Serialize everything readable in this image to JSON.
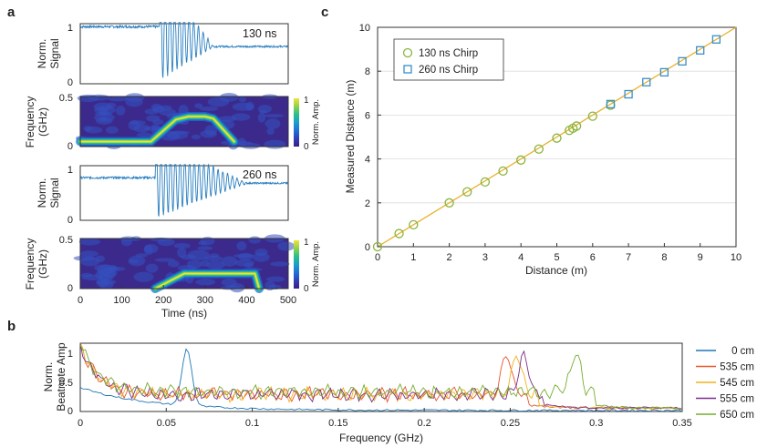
{
  "panels": {
    "a": "a",
    "b": "b",
    "c": "c"
  },
  "colors": {
    "signal": "#2a7fc1",
    "fit_line": "#e8b02a",
    "marker_130": "#8ab43c",
    "marker_260": "#3a8fc8",
    "grid": "#dcdcdc"
  },
  "panel_a": {
    "signal_130_label": "130 ns",
    "signal_260_label": "260 ns",
    "signal_ylabel": [
      "Norm.",
      "Signal"
    ],
    "spec_ylabel": [
      "Frequency",
      "(GHz)"
    ],
    "signal_yticks": [
      "1",
      "0"
    ],
    "spec_yticks": [
      "0.5",
      "0"
    ],
    "colorbar_ticks": [
      "1",
      "0"
    ],
    "colorbar_label": "Norm. Amp.",
    "colormap": [
      "#3b1f84",
      "#3140b8",
      "#1f6fd8",
      "#1aa0c8",
      "#27c08a",
      "#8fd14a",
      "#f0e23a"
    ],
    "xticks": [
      "0",
      "100",
      "200",
      "300",
      "400",
      "500"
    ],
    "xlabel": "Time (ns)"
  },
  "panel_b": {
    "ylabel": [
      "Norm.",
      "Beatnote Amp"
    ],
    "xlabel": "Frequency (GHz)",
    "xticks": [
      "0",
      "0.05",
      "0.1",
      "0.15",
      "0.2",
      "0.25",
      "0.3",
      "0.35"
    ],
    "yticks": [
      "1",
      "0.5",
      "0"
    ],
    "legend": [
      {
        "label": "0 cm",
        "color": "#1f77b4"
      },
      {
        "label": "535 cm",
        "color": "#e8552a"
      },
      {
        "label": "545 cm",
        "color": "#f0b21a"
      },
      {
        "label": "555 cm",
        "color": "#7b2d8e"
      },
      {
        "label": "650 cm",
        "color": "#77ac30"
      }
    ]
  },
  "panel_c": {
    "xlabel": "Distance (m)",
    "ylabel": "Measured Distance (m)",
    "xticks": [
      "0",
      "1",
      "2",
      "3",
      "4",
      "5",
      "6",
      "7",
      "8",
      "9",
      "10"
    ],
    "yticks": [
      "0",
      "2",
      "4",
      "6",
      "8",
      "10"
    ],
    "legend": [
      {
        "label": "130 ns Chirp"
      },
      {
        "label": "260 ns Chirp"
      }
    ]
  },
  "chart_data": [
    {
      "type": "line",
      "panel": "a-top",
      "title": "130 ns",
      "xlabel": "Time (ns)",
      "ylabel": "Norm. Signal",
      "xlim": [
        0,
        500
      ],
      "ylim": [
        0,
        1
      ],
      "description_points": {
        "baseline": 0.95,
        "onset_ns": 190,
        "decay_end_ns": 320,
        "tail_level": 0.62
      }
    },
    {
      "type": "heatmap",
      "panel": "a-spectrogram-130",
      "xlabel": "Time (ns)",
      "ylabel": "Frequency (GHz)",
      "xlim": [
        0,
        500
      ],
      "ylim": [
        0,
        0.5
      ],
      "ridge": {
        "x": [
          0,
          170,
          230,
          260,
          300,
          320,
          370
        ],
        "y": [
          0.05,
          0.05,
          0.27,
          0.3,
          0.3,
          0.28,
          0.05
        ]
      }
    },
    {
      "type": "line",
      "panel": "a-bottom",
      "title": "260 ns",
      "xlabel": "Time (ns)",
      "ylabel": "Norm. Signal",
      "xlim": [
        0,
        500
      ],
      "ylim": [
        0,
        1
      ],
      "description_points": {
        "baseline": 0.78,
        "onset_ns": 180,
        "decay_end_ns": 400,
        "tail_level": 0.68
      }
    },
    {
      "type": "heatmap",
      "panel": "a-spectrogram-260",
      "xlabel": "Time (ns)",
      "ylabel": "Frequency (GHz)",
      "xlim": [
        0,
        500
      ],
      "ylim": [
        0,
        0.5
      ],
      "ridge": {
        "x": [
          180,
          250,
          300,
          420,
          430
        ],
        "y": [
          0.0,
          0.15,
          0.15,
          0.15,
          0.0
        ]
      }
    },
    {
      "type": "line",
      "panel": "b",
      "xlabel": "Frequency (GHz)",
      "ylabel": "Norm. Beatnote Amp",
      "xlim": [
        0,
        0.35
      ],
      "ylim": [
        0,
        1.2
      ],
      "series": [
        {
          "name": "0 cm",
          "color": "#1f77b4",
          "peak_x": 0.062,
          "peak_y": 1.0,
          "floor": 0.02
        },
        {
          "name": "535 cm",
          "color": "#e8552a",
          "peak_x": 0.248,
          "peak_y": 1.0,
          "floor": 0.3
        },
        {
          "name": "545 cm",
          "color": "#f0b21a",
          "peak_x": 0.254,
          "peak_y": 1.0,
          "floor": 0.3
        },
        {
          "name": "555 cm",
          "color": "#7b2d8e",
          "peak_x": 0.258,
          "peak_y": 1.0,
          "floor": 0.3
        },
        {
          "name": "650 cm",
          "color": "#77ac30",
          "peak_x": 0.288,
          "peak_y": 1.0,
          "floor": 0.35
        }
      ]
    },
    {
      "type": "scatter",
      "panel": "c",
      "xlabel": "Distance (m)",
      "ylabel": "Measured Distance (m)",
      "xlim": [
        0,
        10
      ],
      "ylim": [
        0,
        10
      ],
      "grid": true,
      "legend_position": "top-left",
      "series": [
        {
          "name": "130 ns Chirp",
          "marker": "circle",
          "color": "#8ab43c",
          "x": [
            0,
            0.6,
            1,
            2,
            2.5,
            3,
            3.5,
            4,
            4.5,
            5,
            5.35,
            5.45,
            5.55,
            6,
            6.5
          ],
          "y": [
            0,
            0.6,
            1,
            2,
            2.5,
            2.95,
            3.45,
            3.95,
            4.45,
            4.95,
            5.3,
            5.4,
            5.5,
            5.95,
            6.45
          ]
        },
        {
          "name": "260 ns Chirp",
          "marker": "square",
          "color": "#3a8fc8",
          "x": [
            6.5,
            7,
            7.5,
            8,
            8.5,
            9,
            9.45
          ],
          "y": [
            6.5,
            6.95,
            7.5,
            7.95,
            8.45,
            8.95,
            9.45
          ]
        }
      ],
      "fit_line": {
        "x": [
          0,
          10
        ],
        "y": [
          0,
          10
        ],
        "color": "#e8b02a"
      }
    }
  ]
}
